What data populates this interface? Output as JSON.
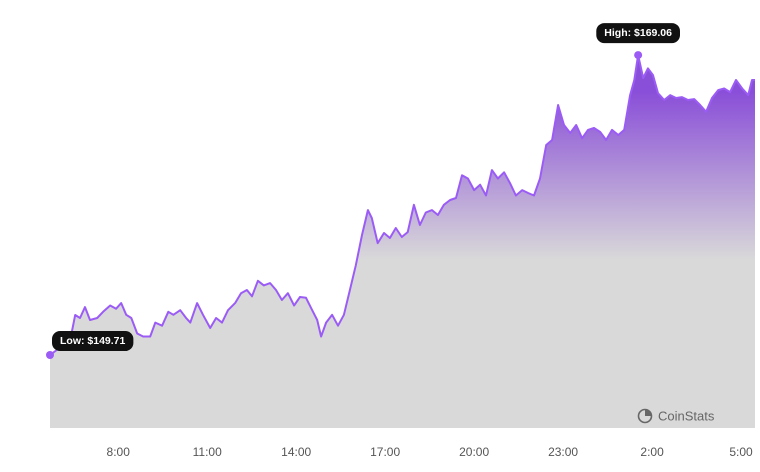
{
  "chart_data": {
    "type": "area",
    "x": [
      5.7,
      6.38,
      6.55,
      6.71,
      6.88,
      7.05,
      7.29,
      7.49,
      7.73,
      7.93,
      8.1,
      8.27,
      8.44,
      8.64,
      8.84,
      9.08,
      9.25,
      9.48,
      9.69,
      9.86,
      10.09,
      10.29,
      10.43,
      10.66,
      10.86,
      11.1,
      11.3,
      11.5,
      11.7,
      11.94,
      12.14,
      12.34,
      12.51,
      12.71,
      12.91,
      13.12,
      13.32,
      13.52,
      13.72,
      13.93,
      14.13,
      14.33,
      14.54,
      14.71,
      14.84,
      15.01,
      15.21,
      15.41,
      15.61,
      15.81,
      16.01,
      16.22,
      16.42,
      16.55,
      16.75,
      16.96,
      17.16,
      17.36,
      17.56,
      17.76,
      17.97,
      18.17,
      18.37,
      18.58,
      18.78,
      18.98,
      19.19,
      19.39,
      19.59,
      19.79,
      20.0,
      20.2,
      20.4,
      20.6,
      20.8,
      21.01,
      21.21,
      21.41,
      21.62,
      21.82,
      22.02,
      22.22,
      22.43,
      22.63,
      22.83,
      23.03,
      23.24,
      23.44,
      23.64,
      23.84,
      24.04,
      24.25,
      24.45,
      24.65,
      24.86,
      25.06,
      25.26,
      25.4,
      25.53,
      25.7,
      25.86,
      26.03,
      26.2,
      26.41,
      26.61,
      26.81,
      27.01,
      27.21,
      27.42,
      27.62,
      27.82,
      28.02,
      28.23,
      28.43,
      28.63,
      28.83,
      29.04,
      29.24,
      29.37,
      29.47
    ],
    "series": [
      {
        "color": "#9b5cf6",
        "values": [
          149.71,
          150.68,
          152.29,
          152.1,
          152.8,
          151.97,
          152.1,
          152.5,
          152.9,
          152.7,
          153.06,
          152.3,
          152.1,
          151.1,
          150.9,
          150.9,
          151.8,
          151.6,
          152.5,
          152.3,
          152.6,
          152.1,
          151.8,
          153.06,
          152.3,
          151.45,
          152.1,
          151.8,
          152.6,
          153.06,
          153.7,
          153.9,
          153.5,
          154.5,
          154.2,
          154.35,
          153.9,
          153.26,
          153.7,
          152.9,
          153.45,
          153.4,
          152.6,
          151.97,
          150.9,
          151.8,
          152.3,
          151.6,
          152.3,
          153.9,
          155.5,
          157.45,
          159.06,
          158.55,
          156.93,
          157.58,
          157.26,
          157.9,
          157.32,
          157.64,
          159.4,
          158.1,
          158.9,
          159.06,
          158.74,
          159.4,
          159.71,
          159.84,
          161.3,
          161.1,
          160.35,
          160.7,
          160.0,
          161.64,
          161.1,
          161.5,
          160.8,
          160.0,
          160.35,
          160.16,
          160.0,
          161.1,
          163.26,
          163.58,
          165.84,
          164.55,
          164.03,
          164.55,
          163.7,
          164.23,
          164.36,
          164.1,
          163.58,
          164.23,
          163.9,
          164.23,
          166.48,
          167.45,
          169.06,
          167.58,
          168.2,
          167.77,
          166.6,
          166.16,
          166.48,
          166.29,
          166.35,
          166.16,
          166.22,
          165.84,
          165.4,
          166.29,
          166.8,
          166.9,
          166.67,
          167.45,
          166.9,
          166.48,
          167.45,
          167.45
        ]
      }
    ],
    "area_colors": [
      "#8a4fd8",
      "#d9d9d9"
    ],
    "xlim": [
      5.7,
      29.47
    ],
    "xticks": [
      {
        "value": 8,
        "label": "8:00"
      },
      {
        "value": 11,
        "label": "11:00"
      },
      {
        "value": 14,
        "label": "14:00"
      },
      {
        "value": 17,
        "label": "17:00"
      },
      {
        "value": 20,
        "label": "20:00"
      },
      {
        "value": 23,
        "label": "23:00"
      },
      {
        "value": 26,
        "label": "2:00"
      },
      {
        "value": 29,
        "label": "5:00"
      }
    ],
    "ylim": [
      145,
      170
    ],
    "annotations": {
      "low": "Low: $149.71",
      "high": "High: $169.06"
    },
    "watermark": "CoinStats"
  }
}
